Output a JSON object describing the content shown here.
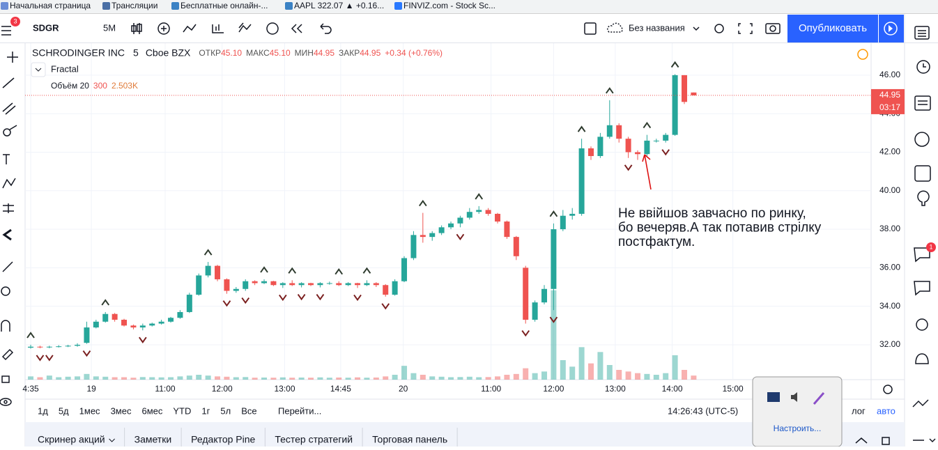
{
  "bookmarks": [
    "Начальная страница",
    "Трансляции",
    "Бесплатные онлайн-...",
    "AAPL 322.07 ▲ +0.16...",
    "FINVIZ.com - Stock Sc..."
  ],
  "toolbar": {
    "menu_badge": "3",
    "symbol": "SDGR",
    "interval": "5M",
    "layout_name": "Без названия",
    "publish": "Опубликовать"
  },
  "chart_data": {
    "type": "candlestick",
    "title": "SCHRODINGER INC",
    "interval": "5",
    "exchange": "Cboe BZX",
    "ohlc_legend": [
      {
        "label": "ОТКР",
        "value": "45.10"
      },
      {
        "label": "МАКС",
        "value": "45.10"
      },
      {
        "label": "МИН",
        "value": "44.95"
      },
      {
        "label": "ЗАКР",
        "value": "44.95"
      }
    ],
    "change": "+0.34 (+0.76%)",
    "indicator": "Fractal",
    "volume_legend": [
      "Объём 20",
      "300",
      "2.503K"
    ],
    "last_price_label": "44.95",
    "countdown": "03:17",
    "up_color": "#26a69a",
    "down_color": "#ef5350",
    "fractal_color": "#2e3b2e",
    "open": [
      31.85,
      31.9,
      31.88,
      31.9,
      31.92,
      31.95,
      32.1,
      32.9,
      33.2,
      33.6,
      33.3,
      33.0,
      32.9,
      33.0,
      33.1,
      33.2,
      33.4,
      33.7,
      34.6,
      35.6,
      36.1,
      35.4,
      34.8,
      34.9,
      35.3,
      35.2,
      35.3,
      35.1,
      35.2,
      35.1,
      35.2,
      35.1,
      35.2,
      35.2,
      35.1,
      35.2,
      35.1,
      35.2,
      35.1,
      34.6,
      35.3,
      36.5,
      37.7,
      37.6,
      37.8,
      38.1,
      38.3,
      38.6,
      38.9,
      39.0,
      38.8,
      38.4,
      37.6,
      36.0,
      33.3,
      34.2,
      34.9,
      38.0,
      38.7,
      38.8,
      42.2,
      41.8,
      42.8,
      43.4,
      42.7,
      42.0,
      41.9,
      42.6,
      42.6,
      42.9,
      46.0,
      45.1
    ],
    "high": [
      32.0,
      31.95,
      31.95,
      31.98,
      32.0,
      32.08,
      33.2,
      33.3,
      33.7,
      33.65,
      33.35,
      33.05,
      33.1,
      33.15,
      33.3,
      33.45,
      33.8,
      34.7,
      35.7,
      36.3,
      36.15,
      35.45,
      35.0,
      35.4,
      35.35,
      35.4,
      35.32,
      35.25,
      35.35,
      35.25,
      35.22,
      35.25,
      35.28,
      35.3,
      35.25,
      35.22,
      35.35,
      35.25,
      35.15,
      35.4,
      36.6,
      37.9,
      38.85,
      37.9,
      38.2,
      38.4,
      38.7,
      39.1,
      39.2,
      39.1,
      38.85,
      38.45,
      37.65,
      36.1,
      34.3,
      35.1,
      38.3,
      39.0,
      39.1,
      42.7,
      42.3,
      43.0,
      44.7,
      43.5,
      42.8,
      42.1,
      42.9,
      42.7,
      43.0,
      46.05,
      46.0,
      45.1
    ],
    "low": [
      31.8,
      31.82,
      31.82,
      31.86,
      31.88,
      31.9,
      32.05,
      32.85,
      33.15,
      33.2,
      32.95,
      32.8,
      32.75,
      32.95,
      33.05,
      33.15,
      33.35,
      33.65,
      34.55,
      35.5,
      35.3,
      34.65,
      34.7,
      34.8,
      35.1,
      35.15,
      35.05,
      34.95,
      35.05,
      34.98,
      35.05,
      34.98,
      35.12,
      35.05,
      35.05,
      34.95,
      35.05,
      35.0,
      34.5,
      34.55,
      35.25,
      36.4,
      37.3,
      37.4,
      37.7,
      38.0,
      38.1,
      38.5,
      38.8,
      38.7,
      38.3,
      37.5,
      36.4,
      33.1,
      33.2,
      34.1,
      33.8,
      37.9,
      38.5,
      38.7,
      41.6,
      41.7,
      42.7,
      42.5,
      41.7,
      41.6,
      41.8,
      42.5,
      42.5,
      42.85,
      44.5,
      44.95
    ],
    "close": [
      31.9,
      31.88,
      31.9,
      31.92,
      31.95,
      32.0,
      32.9,
      33.2,
      33.6,
      33.3,
      33.0,
      32.9,
      33.0,
      33.1,
      33.2,
      33.4,
      33.7,
      34.6,
      35.6,
      36.1,
      35.4,
      34.8,
      34.9,
      35.3,
      35.2,
      35.3,
      35.1,
      35.2,
      35.1,
      35.2,
      35.1,
      35.2,
      35.2,
      35.1,
      35.2,
      35.1,
      35.2,
      35.1,
      34.6,
      35.3,
      36.5,
      37.7,
      37.6,
      37.8,
      38.1,
      38.3,
      38.6,
      38.9,
      39.0,
      38.8,
      38.4,
      37.6,
      36.6,
      33.3,
      34.2,
      34.9,
      38.0,
      38.7,
      38.8,
      42.2,
      41.8,
      42.8,
      43.4,
      42.7,
      42.0,
      41.9,
      42.6,
      42.6,
      42.9,
      46.0,
      44.61,
      44.95
    ],
    "volume": [
      2000,
      1500,
      2500,
      1500,
      1800,
      2000,
      3500,
      2000,
      1800,
      1500,
      1500,
      1200,
      1600,
      1500,
      1400,
      1500,
      2000,
      2500,
      3000,
      2500,
      2000,
      1800,
      1500,
      1600,
      1200,
      1300,
      1200,
      1400,
      1200,
      1300,
      1200,
      1400,
      1200,
      1300,
      1200,
      1400,
      1200,
      1300,
      2000,
      3000,
      8500,
      4000,
      3000,
      2000,
      1800,
      1500,
      1600,
      1800,
      1500,
      1600,
      2000,
      3000,
      3500,
      7000,
      4000,
      5000,
      55000,
      12000,
      8000,
      20000,
      10000,
      17000,
      9000,
      6000,
      5000,
      4000,
      3500,
      3000,
      4000,
      15000,
      6000,
      2503
    ],
    "fractal_up": [
      0,
      8,
      19,
      25,
      28,
      33,
      36,
      42,
      48,
      56,
      59,
      62,
      66,
      69
    ],
    "fractal_down": [
      1,
      2,
      6,
      12,
      21,
      23,
      27,
      29,
      31,
      35,
      38,
      46,
      53,
      56,
      64,
      68
    ],
    "xlim": [
      -0.6,
      90
    ],
    "ylim": [
      30.19,
      47.66
    ],
    "vlim": [
      0,
      60000
    ],
    "yticks": [
      {
        "value": 32,
        "label": "32.00"
      },
      {
        "value": 34,
        "label": "34.00"
      },
      {
        "value": 36,
        "label": "36.00"
      },
      {
        "value": 38,
        "label": "38.00"
      },
      {
        "value": 40,
        "label": "40.00"
      },
      {
        "value": 42,
        "label": "42.00"
      },
      {
        "value": 44,
        "label": "44.00"
      },
      {
        "value": 46,
        "label": "46.00"
      }
    ],
    "xticks": [
      {
        "value": 0,
        "label": "4:35"
      },
      {
        "value": 6.5,
        "label": "19"
      },
      {
        "value": 14.4,
        "label": "11:00"
      },
      {
        "value": 20.5,
        "label": "12:00"
      },
      {
        "value": 27.2,
        "label": "13:00"
      },
      {
        "value": 33.2,
        "label": "14:45"
      },
      {
        "value": 39.9,
        "label": "20"
      },
      {
        "value": 49.3,
        "label": "11:00"
      },
      {
        "value": 56,
        "label": "12:00"
      },
      {
        "value": 62.6,
        "label": "13:00"
      },
      {
        "value": 68.7,
        "label": "14:00"
      },
      {
        "value": 75.2,
        "label": "15:00"
      }
    ],
    "grid": true,
    "annotation": [
      "Не ввійшов завчасно по ринку,",
      " бо вечеряв.А так потавив стрілку",
      "постфактум."
    ]
  },
  "bottom_bar": {
    "ranges": [
      "1д",
      "5д",
      "1мес",
      "3мес",
      "6мес",
      "YTD",
      "1г",
      "5л",
      "Все"
    ],
    "goto": "Перейти...",
    "clock": "14:26:43 (UTC-5)",
    "log": "лог",
    "auto": "авто"
  },
  "tabs": [
    "Скринер акций",
    "Заметки",
    "Редактор Pine",
    "Тестер стратегий",
    "Торговая панель"
  ],
  "tray": {
    "configure": "Настроить..."
  },
  "sidebar_badge": "1"
}
